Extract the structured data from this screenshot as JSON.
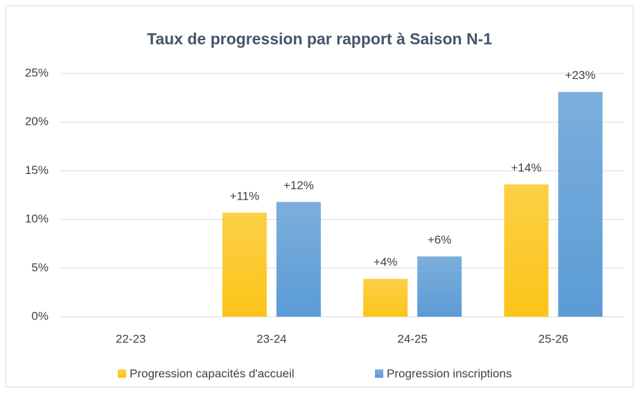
{
  "chart_data": {
    "type": "bar",
    "title": "Taux de progression par rapport à Saison N-1",
    "categories": [
      "22-23",
      "23-24",
      "24-25",
      "25-26"
    ],
    "series": [
      {
        "name": "Progression capacités d'accueil",
        "color": "#fcc419",
        "values": [
          null,
          10.7,
          3.9,
          13.6
        ],
        "value_labels": [
          null,
          "+11%",
          "+4%",
          "+14%"
        ]
      },
      {
        "name": "Progression inscriptions",
        "color": "#5b9bd5",
        "values": [
          null,
          11.8,
          6.2,
          23.1
        ],
        "value_labels": [
          null,
          "+12%",
          "+6%",
          "+23%"
        ]
      }
    ],
    "ylim": [
      0,
      25
    ],
    "yticks": [
      {
        "value": 0,
        "label": "0%"
      },
      {
        "value": 5,
        "label": "5%"
      },
      {
        "value": 10,
        "label": "10%"
      },
      {
        "value": 15,
        "label": "15%"
      },
      {
        "value": 20,
        "label": "20%"
      },
      {
        "value": 25,
        "label": "25%"
      }
    ],
    "grid": true,
    "legend": "bottom"
  }
}
